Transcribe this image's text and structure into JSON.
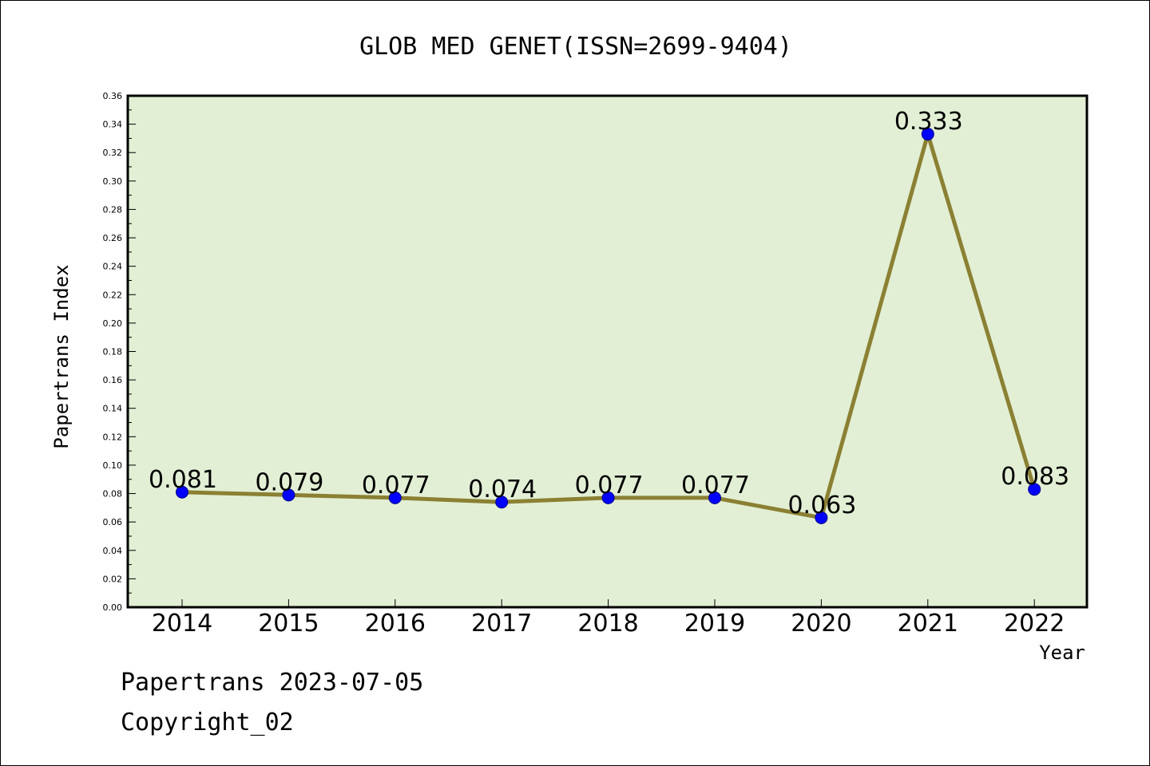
{
  "chart_data": {
    "type": "line",
    "title": "GLOB MED GENET(ISSN=2699-9404)",
    "xlabel": "Year",
    "ylabel": "Papertrans Index",
    "categories": [
      "2014",
      "2015",
      "2016",
      "2017",
      "2018",
      "2019",
      "2020",
      "2021",
      "2022"
    ],
    "values": [
      0.081,
      0.079,
      0.077,
      0.074,
      0.077,
      0.077,
      0.063,
      0.333,
      0.083
    ],
    "value_labels": [
      "0.081",
      "0.079",
      "0.077",
      "0.074",
      "0.077",
      "0.077",
      "0.063",
      "0.333",
      "0.083"
    ],
    "ylim": [
      0,
      0.36
    ],
    "yticks": [
      "0.00",
      "0.02",
      "0.04",
      "0.06",
      "0.08",
      "0.10",
      "0.12",
      "0.14",
      "0.16",
      "0.18",
      "0.20",
      "0.22",
      "0.24",
      "0.26",
      "0.28",
      "0.30",
      "0.32",
      "0.34",
      "0.36"
    ],
    "grid": false,
    "colors": {
      "plot_background": "#e2efd4",
      "line": "#8b8033",
      "marker": "#0000ff"
    }
  },
  "footer": {
    "source": "Papertrans 2023-07-05",
    "copyright": "Copyright_02"
  }
}
